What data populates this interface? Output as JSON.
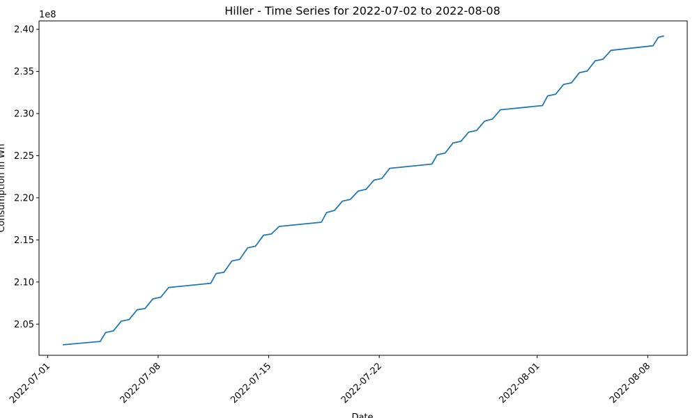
{
  "chart_data": {
    "type": "line",
    "title": "Hiller - Time Series for 2022-07-02 to 2022-08-08",
    "xlabel": "Date",
    "ylabel": "Consumption in Wh",
    "y_offset_label": "1e8",
    "x_tick_labels": [
      "2022-07-01",
      "2022-07-08",
      "2022-07-15",
      "2022-07-22",
      "2022-08-01",
      "2022-08-08"
    ],
    "y_tick_labels": [
      "2.05",
      "2.10",
      "2.15",
      "2.20",
      "2.25",
      "2.30",
      "2.35",
      "2.40"
    ],
    "y_tick_values": [
      205000000,
      210000000,
      215000000,
      220000000,
      225000000,
      230000000,
      235000000,
      240000000
    ],
    "xlim": [
      "2022-06-30T11:00",
      "2022-08-10T12:00"
    ],
    "ylim": [
      201300000,
      241000000
    ],
    "grid": false,
    "series": [
      {
        "color": "#1f77b4",
        "x": [
          "2022-07-02T00:00",
          "2022-07-04T08:00",
          "2022-07-04T16:00",
          "2022-07-05T04:00",
          "2022-07-05T16:00",
          "2022-07-06T04:00",
          "2022-07-06T16:00",
          "2022-07-07T04:00",
          "2022-07-07T16:00",
          "2022-07-08T04:00",
          "2022-07-08T16:00",
          "2022-07-11T08:00",
          "2022-07-11T16:00",
          "2022-07-12T04:00",
          "2022-07-12T16:00",
          "2022-07-13T04:00",
          "2022-07-13T16:00",
          "2022-07-14T04:00",
          "2022-07-14T16:00",
          "2022-07-15T04:00",
          "2022-07-15T16:00",
          "2022-07-18T08:00",
          "2022-07-18T16:00",
          "2022-07-19T04:00",
          "2022-07-19T16:00",
          "2022-07-20T04:00",
          "2022-07-20T16:00",
          "2022-07-21T04:00",
          "2022-07-21T16:00",
          "2022-07-22T04:00",
          "2022-07-22T16:00",
          "2022-07-25T08:00",
          "2022-07-25T16:00",
          "2022-07-26T04:00",
          "2022-07-26T16:00",
          "2022-07-27T04:00",
          "2022-07-27T16:00",
          "2022-07-28T04:00",
          "2022-07-28T16:00",
          "2022-07-29T04:00",
          "2022-07-29T16:00",
          "2022-08-01T08:00",
          "2022-08-01T16:00",
          "2022-08-02T04:00",
          "2022-08-02T16:00",
          "2022-08-03T04:00",
          "2022-08-03T16:00",
          "2022-08-04T04:00",
          "2022-08-04T16:00",
          "2022-08-05T04:00",
          "2022-08-05T16:00",
          "2022-08-08T08:00",
          "2022-08-08T16:00",
          "2022-08-09T00:00"
        ],
        "y": [
          202550000,
          202950000,
          204000000,
          204200000,
          205350000,
          205550000,
          206700000,
          206850000,
          208000000,
          208200000,
          209350000,
          209850000,
          211000000,
          211150000,
          212500000,
          212700000,
          214050000,
          214250000,
          215550000,
          215700000,
          216600000,
          217100000,
          218250000,
          218500000,
          219600000,
          219800000,
          220800000,
          221000000,
          222100000,
          222300000,
          223500000,
          224000000,
          225100000,
          225300000,
          226500000,
          226700000,
          227800000,
          228000000,
          229100000,
          229350000,
          230450000,
          230950000,
          232100000,
          232300000,
          233450000,
          233650000,
          234850000,
          235050000,
          236250000,
          236450000,
          237500000,
          238050000,
          239050000,
          239200000
        ]
      }
    ]
  }
}
